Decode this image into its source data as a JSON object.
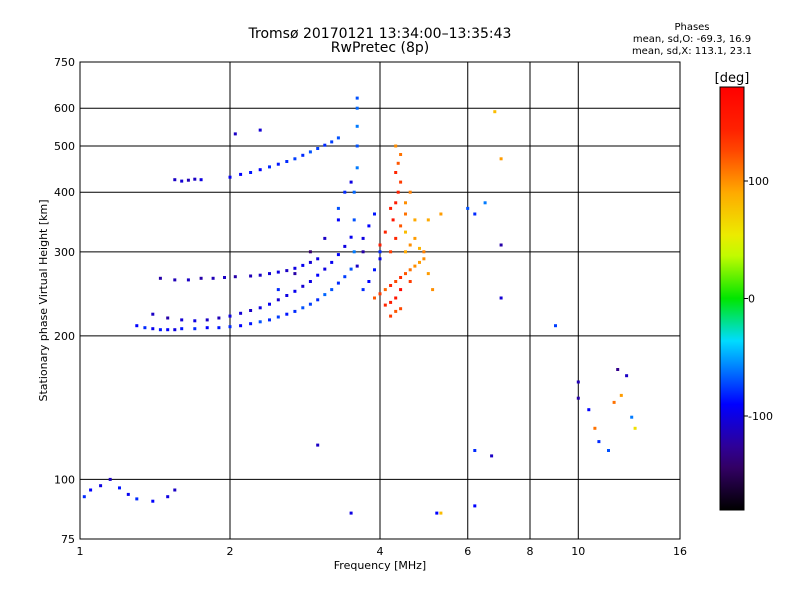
{
  "header": {
    "title_line1": "Tromsø 20170121 13:34:00–13:35:43",
    "title_line2": "RwPretec (8p)"
  },
  "phase_box": {
    "heading": "Phases",
    "o_stats": "mean, sd,O: -69.3, 16.9",
    "x_stats": "mean, sd,X: 113.1, 23.1"
  },
  "chart_data": {
    "type": "scatter",
    "xlabel": "Frequency [MHz]",
    "ylabel": "Stationary phase Virtual Height [km]",
    "xscale": "log",
    "yscale": "log",
    "xlim": [
      1,
      16
    ],
    "ylim": [
      75,
      750
    ],
    "x_ticks": [
      1,
      2,
      4,
      6,
      8,
      10,
      16
    ],
    "x_tick_labels": [
      "1",
      "2",
      "4",
      "6",
      "8",
      "10",
      "16"
    ],
    "y_ticks": [
      75,
      100,
      200,
      300,
      400,
      500,
      600,
      750
    ],
    "y_tick_labels": [
      "75",
      "100",
      "200",
      "300",
      "400",
      "500",
      "600",
      "750"
    ],
    "grid": true,
    "colorbar": {
      "label": "[deg]",
      "range": [
        -180,
        180
      ],
      "ticks": [
        100,
        0,
        -100
      ],
      "tick_labels": [
        "100",
        "0",
        "-100"
      ]
    },
    "series": [
      {
        "points": [
          [
            1.3,
            210,
            -90
          ],
          [
            1.35,
            208,
            -80
          ],
          [
            1.4,
            207,
            -95
          ],
          [
            1.45,
            206,
            -85
          ],
          [
            1.5,
            206,
            -90
          ],
          [
            1.55,
            206,
            -100
          ],
          [
            1.6,
            207,
            -85
          ],
          [
            1.7,
            207,
            -80
          ],
          [
            1.8,
            208,
            -90
          ],
          [
            1.9,
            208,
            -85
          ],
          [
            2.0,
            209,
            -80
          ],
          [
            2.1,
            210,
            -90
          ],
          [
            2.2,
            212,
            -85
          ],
          [
            2.3,
            214,
            -70
          ],
          [
            2.4,
            216,
            -80
          ],
          [
            2.5,
            219,
            -75
          ],
          [
            2.6,
            222,
            -85
          ],
          [
            2.7,
            225,
            -80
          ],
          [
            2.8,
            229,
            -70
          ],
          [
            2.9,
            233,
            -75
          ],
          [
            3.0,
            238,
            -80
          ],
          [
            3.1,
            244,
            -65
          ],
          [
            3.2,
            250,
            -70
          ],
          [
            3.3,
            258,
            -80
          ],
          [
            3.4,
            266,
            -75
          ],
          [
            3.5,
            276,
            -70
          ],
          [
            3.55,
            300,
            -60
          ],
          [
            3.55,
            350,
            -70
          ],
          [
            3.55,
            400,
            -65
          ],
          [
            3.6,
            450,
            -60
          ],
          [
            3.6,
            500,
            -70
          ],
          [
            3.6,
            550,
            -60
          ],
          [
            3.6,
            600,
            -65
          ],
          [
            3.6,
            630,
            -70
          ],
          [
            1.4,
            222,
            -110
          ],
          [
            1.5,
            218,
            -120
          ],
          [
            1.6,
            216,
            -105
          ],
          [
            1.7,
            215,
            -100
          ],
          [
            1.8,
            216,
            -110
          ],
          [
            1.9,
            218,
            -115
          ],
          [
            2.0,
            220,
            -100
          ],
          [
            2.1,
            223,
            -105
          ],
          [
            2.2,
            226,
            -110
          ],
          [
            2.3,
            229,
            -100
          ],
          [
            2.4,
            233,
            -95
          ],
          [
            2.5,
            238,
            -105
          ],
          [
            2.6,
            243,
            -100
          ],
          [
            2.7,
            248,
            -95
          ],
          [
            2.8,
            254,
            -105
          ],
          [
            2.9,
            260,
            -100
          ],
          [
            3.0,
            268,
            -90
          ],
          [
            3.1,
            276,
            -100
          ],
          [
            3.2,
            285,
            -95
          ],
          [
            3.3,
            296,
            -90
          ],
          [
            3.4,
            308,
            -100
          ],
          [
            3.5,
            322,
            -95
          ],
          [
            1.45,
            264,
            -120
          ],
          [
            1.55,
            262,
            -115
          ],
          [
            1.65,
            262,
            -110
          ],
          [
            1.75,
            264,
            -120
          ],
          [
            1.85,
            264,
            -115
          ],
          [
            1.95,
            265,
            -110
          ],
          [
            2.05,
            266,
            -120
          ],
          [
            2.2,
            267,
            -115
          ],
          [
            2.3,
            268,
            -110
          ],
          [
            2.4,
            270,
            -105
          ],
          [
            2.5,
            272,
            -100
          ],
          [
            2.6,
            274,
            -110
          ],
          [
            2.7,
            277,
            -100
          ],
          [
            2.8,
            281,
            -95
          ],
          [
            2.9,
            285,
            -105
          ],
          [
            3.0,
            290,
            -100
          ],
          [
            1.55,
            425,
            -110
          ],
          [
            1.6,
            422,
            -105
          ],
          [
            1.65,
            424,
            -115
          ],
          [
            1.7,
            426,
            -110
          ],
          [
            1.75,
            425,
            -100
          ],
          [
            2.0,
            430,
            -95
          ],
          [
            2.1,
            436,
            -90
          ],
          [
            2.2,
            440,
            -85
          ],
          [
            2.3,
            446,
            -90
          ],
          [
            2.4,
            452,
            -80
          ],
          [
            2.5,
            458,
            -85
          ],
          [
            2.6,
            464,
            -80
          ],
          [
            2.7,
            470,
            -75
          ],
          [
            2.8,
            478,
            -80
          ],
          [
            2.9,
            486,
            -70
          ],
          [
            3.0,
            494,
            -75
          ],
          [
            3.1,
            502,
            -80
          ],
          [
            3.2,
            510,
            -75
          ],
          [
            3.3,
            520,
            -70
          ],
          [
            2.05,
            530,
            -110
          ],
          [
            2.3,
            540,
            -105
          ],
          [
            3.7,
            250,
            -80
          ],
          [
            3.8,
            260,
            -90
          ],
          [
            3.9,
            275,
            -85
          ],
          [
            4.0,
            290,
            -95
          ],
          [
            3.7,
            320,
            -100
          ],
          [
            3.8,
            340,
            -90
          ],
          [
            3.9,
            360,
            -85
          ],
          [
            4.0,
            300,
            -80
          ],
          [
            3.6,
            280,
            -110
          ],
          [
            3.7,
            300,
            -120
          ],
          [
            1.02,
            92,
            -80
          ],
          [
            1.05,
            95,
            -90
          ],
          [
            1.1,
            97,
            -100
          ],
          [
            1.15,
            100,
            -110
          ],
          [
            1.2,
            96,
            -85
          ],
          [
            1.25,
            93,
            -95
          ],
          [
            1.3,
            91,
            -80
          ],
          [
            1.4,
            90,
            -90
          ],
          [
            1.5,
            92,
            -100
          ],
          [
            1.55,
            95,
            -110
          ],
          [
            3.0,
            118,
            -110
          ],
          [
            3.5,
            85,
            -100
          ],
          [
            5.2,
            85,
            -90
          ],
          [
            5.3,
            85,
            80
          ],
          [
            6.2,
            115,
            -80
          ],
          [
            6.7,
            112,
            -110
          ],
          [
            6.2,
            88,
            -90
          ],
          [
            7.0,
            240,
            -105
          ],
          [
            9.0,
            210,
            -75
          ],
          [
            10.0,
            160,
            -115
          ],
          [
            10.0,
            148,
            -120
          ],
          [
            10.5,
            140,
            -90
          ],
          [
            11.0,
            120,
            -80
          ],
          [
            11.5,
            115,
            -70
          ],
          [
            12.0,
            170,
            -130
          ],
          [
            12.5,
            165,
            -110
          ],
          [
            11.8,
            145,
            110
          ],
          [
            12.2,
            150,
            95
          ],
          [
            12.8,
            135,
            -60
          ],
          [
            13.0,
            128,
            60
          ],
          [
            10.8,
            128,
            110
          ],
          [
            6.0,
            370,
            -70
          ],
          [
            6.2,
            360,
            -80
          ],
          [
            6.5,
            380,
            -60
          ],
          [
            7.0,
            310,
            -120
          ],
          [
            6.8,
            590,
            80
          ],
          [
            7.0,
            470,
            95
          ],
          [
            2.5,
            250,
            -80
          ],
          [
            2.7,
            270,
            -120
          ],
          [
            2.9,
            300,
            -140
          ],
          [
            3.1,
            320,
            -110
          ],
          [
            3.3,
            350,
            -90
          ],
          [
            3.3,
            370,
            -70
          ],
          [
            3.4,
            400,
            -80
          ],
          [
            3.5,
            420,
            -100
          ]
        ]
      },
      {
        "points": [
          [
            3.9,
            240,
            120
          ],
          [
            4.0,
            245,
            130
          ],
          [
            4.1,
            250,
            115
          ],
          [
            4.2,
            255,
            140
          ],
          [
            4.3,
            260,
            125
          ],
          [
            4.4,
            265,
            135
          ],
          [
            4.5,
            270,
            120
          ],
          [
            4.6,
            275,
            110
          ],
          [
            4.7,
            280,
            100
          ],
          [
            4.8,
            285,
            95
          ],
          [
            4.9,
            290,
            100
          ],
          [
            4.2,
            300,
            130
          ],
          [
            4.3,
            320,
            140
          ],
          [
            4.4,
            340,
            120
          ],
          [
            4.5,
            360,
            110
          ],
          [
            4.3,
            380,
            150
          ],
          [
            4.35,
            400,
            145
          ],
          [
            4.4,
            420,
            130
          ],
          [
            4.3,
            440,
            140
          ],
          [
            4.35,
            460,
            120
          ],
          [
            4.4,
            480,
            110
          ],
          [
            4.3,
            500,
            100
          ],
          [
            4.2,
            370,
            150
          ],
          [
            4.25,
            350,
            160
          ],
          [
            4.1,
            330,
            140
          ],
          [
            4.0,
            310,
            150
          ],
          [
            4.5,
            300,
            90
          ],
          [
            4.6,
            310,
            100
          ],
          [
            4.7,
            320,
            95
          ],
          [
            4.8,
            305,
            85
          ],
          [
            4.5,
            330,
            80
          ],
          [
            4.7,
            350,
            90
          ],
          [
            4.9,
            300,
            105
          ],
          [
            5.0,
            270,
            95
          ],
          [
            5.1,
            250,
            100
          ],
          [
            4.6,
            260,
            130
          ],
          [
            4.4,
            250,
            170
          ],
          [
            4.3,
            240,
            160
          ],
          [
            4.2,
            235,
            150
          ],
          [
            4.1,
            232,
            140
          ],
          [
            4.5,
            380,
            100
          ],
          [
            4.6,
            400,
            105
          ],
          [
            5.0,
            350,
            90
          ],
          [
            5.3,
            360,
            95
          ],
          [
            4.2,
            220,
            130
          ],
          [
            4.3,
            225,
            120
          ],
          [
            4.4,
            228,
            125
          ]
        ]
      }
    ]
  }
}
